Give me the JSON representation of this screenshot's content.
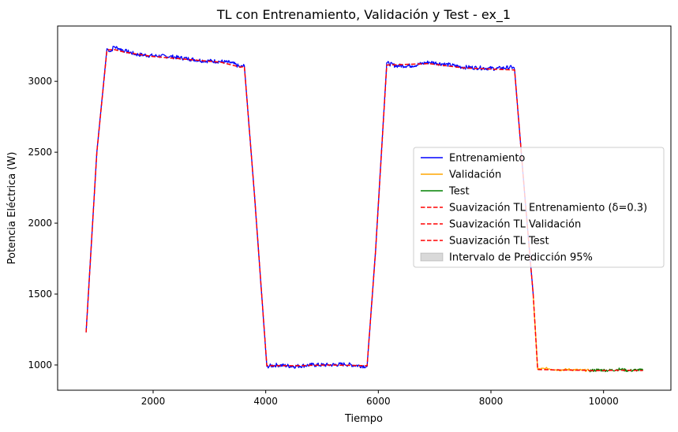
{
  "chart_data": {
    "type": "line",
    "title": "TL con Entrenamiento, Validación y Test - ex_1",
    "xlabel": "Tiempo",
    "ylabel": "Potencia Eléctrica (W)",
    "xlim": [
      304,
      11196
    ],
    "ylim": [
      822,
      3390
    ],
    "xticks": [
      2000,
      4000,
      6000,
      8000,
      10000
    ],
    "xtick_labels": [
      "2000",
      "4000",
      "6000",
      "8000",
      "10000"
    ],
    "yticks": [
      1000,
      1500,
      2000,
      2500,
      3000
    ],
    "ytick_labels": [
      "1000",
      "1500",
      "2000",
      "2500",
      "3000"
    ],
    "grid": false,
    "legend_position": "center-right",
    "series": [
      {
        "name": "Entrenamiento",
        "color": "#0000ff",
        "style": "solid",
        "points": [
          [
            810,
            1230
          ],
          [
            1000,
            2500
          ],
          [
            1180,
            3230
          ],
          [
            1250,
            3210
          ],
          [
            1300,
            3245
          ],
          [
            1400,
            3230
          ],
          [
            1500,
            3215
          ],
          [
            1700,
            3190
          ],
          [
            2000,
            3180
          ],
          [
            2300,
            3175
          ],
          [
            2600,
            3160
          ],
          [
            2900,
            3145
          ],
          [
            3200,
            3140
          ],
          [
            3400,
            3130
          ],
          [
            3550,
            3100
          ],
          [
            3620,
            3110
          ],
          [
            3800,
            2200
          ],
          [
            4020,
            990
          ],
          [
            4200,
            1000
          ],
          [
            4500,
            990
          ],
          [
            4800,
            1000
          ],
          [
            5100,
            1000
          ],
          [
            5400,
            1005
          ],
          [
            5800,
            990
          ],
          [
            5950,
            1800
          ],
          [
            6150,
            3130
          ],
          [
            6300,
            3110
          ],
          [
            6600,
            3110
          ],
          [
            6900,
            3135
          ],
          [
            7200,
            3120
          ],
          [
            7500,
            3100
          ],
          [
            7800,
            3095
          ],
          [
            8100,
            3090
          ],
          [
            8400,
            3100
          ],
          [
            8420,
            3080
          ],
          [
            8600,
            2200
          ],
          [
            8750,
            1500
          ]
        ]
      },
      {
        "name": "Validación",
        "color": "#ffa500",
        "style": "solid",
        "points": [
          [
            8750,
            1500
          ],
          [
            8830,
            970
          ],
          [
            9000,
            975
          ],
          [
            9200,
            965
          ],
          [
            9400,
            968
          ],
          [
            9600,
            963
          ],
          [
            9750,
            962
          ]
        ]
      },
      {
        "name": "Test",
        "color": "#008000",
        "style": "solid",
        "points": [
          [
            9750,
            960
          ],
          [
            9900,
            965
          ],
          [
            10100,
            962
          ],
          [
            10300,
            970
          ],
          [
            10450,
            960
          ],
          [
            10600,
            965
          ],
          [
            10700,
            962
          ]
        ]
      },
      {
        "name": "Suavización TL Entrenamiento (δ=0.3)",
        "color": "#ff0000",
        "style": "dashed",
        "points": [
          [
            810,
            1230
          ],
          [
            1000,
            2500
          ],
          [
            1180,
            3220
          ],
          [
            1300,
            3225
          ],
          [
            1500,
            3205
          ],
          [
            2000,
            3175
          ],
          [
            2600,
            3155
          ],
          [
            3200,
            3135
          ],
          [
            3550,
            3100
          ],
          [
            3620,
            3105
          ],
          [
            3800,
            2200
          ],
          [
            4020,
            995
          ],
          [
            4500,
            995
          ],
          [
            5100,
            1000
          ],
          [
            5800,
            995
          ],
          [
            5950,
            1800
          ],
          [
            6150,
            3115
          ],
          [
            6900,
            3125
          ],
          [
            7500,
            3095
          ],
          [
            8100,
            3085
          ],
          [
            8420,
            3080
          ],
          [
            8600,
            2200
          ],
          [
            8750,
            1500
          ]
        ]
      },
      {
        "name": "Suavización TL Validación",
        "color": "#ff0000",
        "style": "dashed",
        "points": [
          [
            8750,
            1500
          ],
          [
            8830,
            968
          ],
          [
            9200,
            965
          ],
          [
            9750,
            962
          ]
        ]
      },
      {
        "name": "Suavización TL Test",
        "color": "#ff0000",
        "style": "dashed",
        "points": [
          [
            9750,
            960
          ],
          [
            10300,
            963
          ],
          [
            10700,
            961
          ]
        ]
      }
    ],
    "prediction_interval": {
      "name": "Intervalo de Predicción 95%",
      "color": "#808080",
      "opacity": 0.3
    }
  }
}
